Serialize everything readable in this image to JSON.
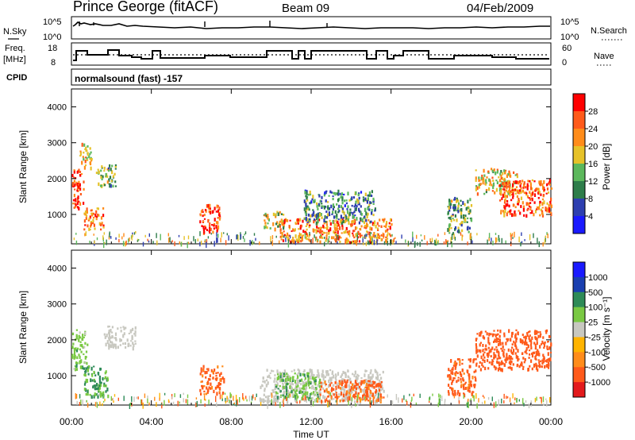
{
  "header": {
    "station": "Prince George (fitACF)",
    "beam": "Beam 09",
    "date": "04/Feb/2009"
  },
  "noise_panel": {
    "left_label": "N.Sky",
    "right_label": "N.Search",
    "left_ticks": [
      "10^5",
      "10^0"
    ],
    "right_ticks": [
      "10^5",
      "10^0"
    ]
  },
  "freq_panel": {
    "left_label_1": "Freq.",
    "left_label_2": "[MHz]",
    "right_label": "Nave",
    "left_ticks": [
      "18",
      "8"
    ],
    "right_ticks": [
      "60",
      "0"
    ]
  },
  "cpid_panel": {
    "label": "CPID",
    "text": "normalsound (fast) -157"
  },
  "colors": {
    "power_scale": [
      "#1a1aff",
      "#2e3fb0",
      "#2e7d4a",
      "#5cb85c",
      "#e6c229",
      "#ff8c1a",
      "#ff5a1a",
      "#ff0000"
    ],
    "velocity_scale": [
      "#e31a1c",
      "#ff5a1a",
      "#ff8c1a",
      "#ffb400",
      "#c8c8c0",
      "#7ac943",
      "#2e8b57",
      "#1a3fb0",
      "#1a1aff"
    ]
  },
  "chart_data": [
    {
      "type": "heatmap",
      "title": "",
      "xlabel": "Time UT",
      "ylabel": "Slant Range [km]",
      "x_ticks": [
        "00:00",
        "04:00",
        "08:00",
        "12:00",
        "16:00",
        "20:00",
        "00:00"
      ],
      "y_ticks": [
        "1000",
        "2000",
        "3000",
        "4000"
      ],
      "ylim": [
        180,
        4500
      ],
      "colorbar": {
        "label": "Power [dB]",
        "ticks": [
          "4",
          "8",
          "12",
          "16",
          "20",
          "24",
          "28"
        ],
        "range": [
          0,
          30
        ]
      },
      "echo_regions": [
        {
          "t_start": 0.0,
          "t_end": 0.6,
          "range_low": 1200,
          "range_high": 2300,
          "value": 26
        },
        {
          "t_start": 0.4,
          "t_end": 1.0,
          "range_low": 2300,
          "range_high": 3000,
          "value": 18
        },
        {
          "t_start": 0.6,
          "t_end": 1.6,
          "range_low": 600,
          "range_high": 1200,
          "value": 22
        },
        {
          "t_start": 1.2,
          "t_end": 2.2,
          "range_low": 1800,
          "range_high": 2400,
          "value": 14
        },
        {
          "t_start": 6.4,
          "t_end": 7.4,
          "range_low": 500,
          "range_high": 1300,
          "value": 26
        },
        {
          "t_start": 9.6,
          "t_end": 10.6,
          "range_low": 600,
          "range_high": 1100,
          "value": 16
        },
        {
          "t_start": 10.4,
          "t_end": 16.0,
          "range_low": 250,
          "range_high": 900,
          "value": 22
        },
        {
          "t_start": 11.6,
          "t_end": 15.2,
          "range_low": 800,
          "range_high": 1700,
          "value": 10
        },
        {
          "t_start": 18.8,
          "t_end": 20.0,
          "range_low": 500,
          "range_high": 1500,
          "value": 12
        },
        {
          "t_start": 20.2,
          "t_end": 22.4,
          "range_low": 1600,
          "range_high": 2300,
          "value": 18
        },
        {
          "t_start": 21.4,
          "t_end": 24.0,
          "range_low": 1000,
          "range_high": 2000,
          "value": 24
        }
      ]
    },
    {
      "type": "heatmap",
      "title": "",
      "xlabel": "Time UT",
      "ylabel": "Slant Range [km]",
      "x_ticks": [
        "00:00",
        "04:00",
        "08:00",
        "12:00",
        "16:00",
        "20:00",
        "00:00"
      ],
      "y_ticks": [
        "1000",
        "2000",
        "3000",
        "4000"
      ],
      "ylim": [
        180,
        4500
      ],
      "colorbar": {
        "label": "Velocity [m s⁻¹]",
        "ticks": [
          "1000",
          "500",
          "100",
          "25",
          "-25",
          "-100",
          "-500",
          "-1000"
        ]
      },
      "echo_regions": [
        {
          "t_start": 0.0,
          "t_end": 0.8,
          "range_low": 1200,
          "range_high": 2300,
          "value": 60
        },
        {
          "t_start": 0.6,
          "t_end": 1.8,
          "range_low": 400,
          "range_high": 1300,
          "value": 120
        },
        {
          "t_start": 1.6,
          "t_end": 3.2,
          "range_low": 1800,
          "range_high": 2400,
          "value": 0
        },
        {
          "t_start": 6.4,
          "t_end": 7.6,
          "range_low": 500,
          "range_high": 1300,
          "value": -150
        },
        {
          "t_start": 9.4,
          "t_end": 15.6,
          "range_low": 300,
          "range_high": 1200,
          "value": 0
        },
        {
          "t_start": 10.2,
          "t_end": 12.4,
          "range_low": 400,
          "range_high": 1100,
          "value": 80
        },
        {
          "t_start": 12.4,
          "t_end": 15.6,
          "range_low": 300,
          "range_high": 900,
          "value": -150
        },
        {
          "t_start": 18.8,
          "t_end": 20.2,
          "range_low": 500,
          "range_high": 1500,
          "value": -150
        },
        {
          "t_start": 20.2,
          "t_end": 24.0,
          "range_low": 1200,
          "range_high": 2300,
          "value": -300
        }
      ]
    }
  ]
}
